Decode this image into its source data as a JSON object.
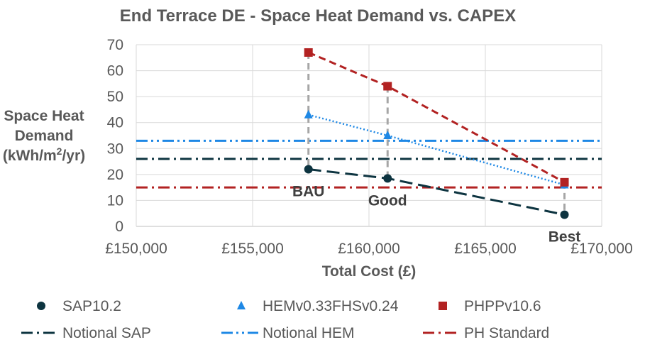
{
  "chart_data": {
    "type": "scatter",
    "title": "End Terrace DE - Space Heat Demand vs. CAPEX",
    "xlabel": "Total Cost (£)",
    "ylabel_lines": [
      "Space Heat",
      "Demand",
      "(kWh/m2/yr)"
    ],
    "ylabel_main": "(kWh/m",
    "ylabel_sup": "2",
    "ylabel_tail": "/yr)",
    "xlim": [
      150000,
      170000
    ],
    "ylim": [
      0,
      70
    ],
    "x_ticks": [
      150000,
      155000,
      160000,
      165000,
      170000
    ],
    "x_tick_labels": [
      "£150,000",
      "£155,000",
      "£160,000",
      "£165,000",
      "£170,000"
    ],
    "y_ticks": [
      0,
      10,
      20,
      30,
      40,
      50,
      60,
      70
    ],
    "y_tick_labels": [
      "0",
      "10",
      "20",
      "30",
      "40",
      "50",
      "60",
      "70"
    ],
    "grid": true,
    "series": [
      {
        "name": "SAP10.2",
        "marker": "circle",
        "color": "#0D3440",
        "line_style": "long-dash",
        "points": [
          {
            "x": 157400,
            "y": 22
          },
          {
            "x": 160800,
            "y": 18.5
          },
          {
            "x": 168400,
            "y": 4.5
          }
        ]
      },
      {
        "name": "HEMv0.33FHSv0.24",
        "marker": "triangle",
        "color": "#1E88E5",
        "line_style": "dotted",
        "points": [
          {
            "x": 157400,
            "y": 43
          },
          {
            "x": 160800,
            "y": 35
          },
          {
            "x": 168400,
            "y": 16
          }
        ]
      },
      {
        "name": "PHPPv10.6",
        "marker": "square",
        "color": "#B22222",
        "line_style": "dashed",
        "points": [
          {
            "x": 157400,
            "y": 67
          },
          {
            "x": 160800,
            "y": 54
          },
          {
            "x": 168400,
            "y": 17
          }
        ]
      }
    ],
    "reference_lines": [
      {
        "name": "Notional SAP",
        "y": 26,
        "color": "#0D3440",
        "style": "dash-dot"
      },
      {
        "name": "Notional HEM",
        "y": 33,
        "color": "#1E88E5",
        "style": "dash-dot-dot"
      },
      {
        "name": "PH Standard",
        "y": 15,
        "color": "#B22222",
        "style": "dash-dot"
      }
    ],
    "drop_lines": {
      "color": "#A6A6A6",
      "segments": [
        {
          "x": 157400,
          "y_top": 67,
          "y_bottom": 22
        },
        {
          "x": 160800,
          "y_top": 54,
          "y_bottom": 18.5
        },
        {
          "x": 168400,
          "y_top": 17,
          "y_bottom": 4.5
        }
      ]
    },
    "point_labels": [
      {
        "text": "BAU",
        "x": 157400,
        "y": 22
      },
      {
        "text": "Good",
        "x": 160800,
        "y": 18.5
      },
      {
        "text": "Best",
        "x": 168400,
        "y": 4.5
      }
    ],
    "legend_position": "bottom",
    "legend": [
      "SAP10.2",
      "HEMv0.33FHSv0.24",
      "PHPPv10.6",
      "Notional SAP",
      "Notional HEM",
      "PH Standard"
    ]
  }
}
